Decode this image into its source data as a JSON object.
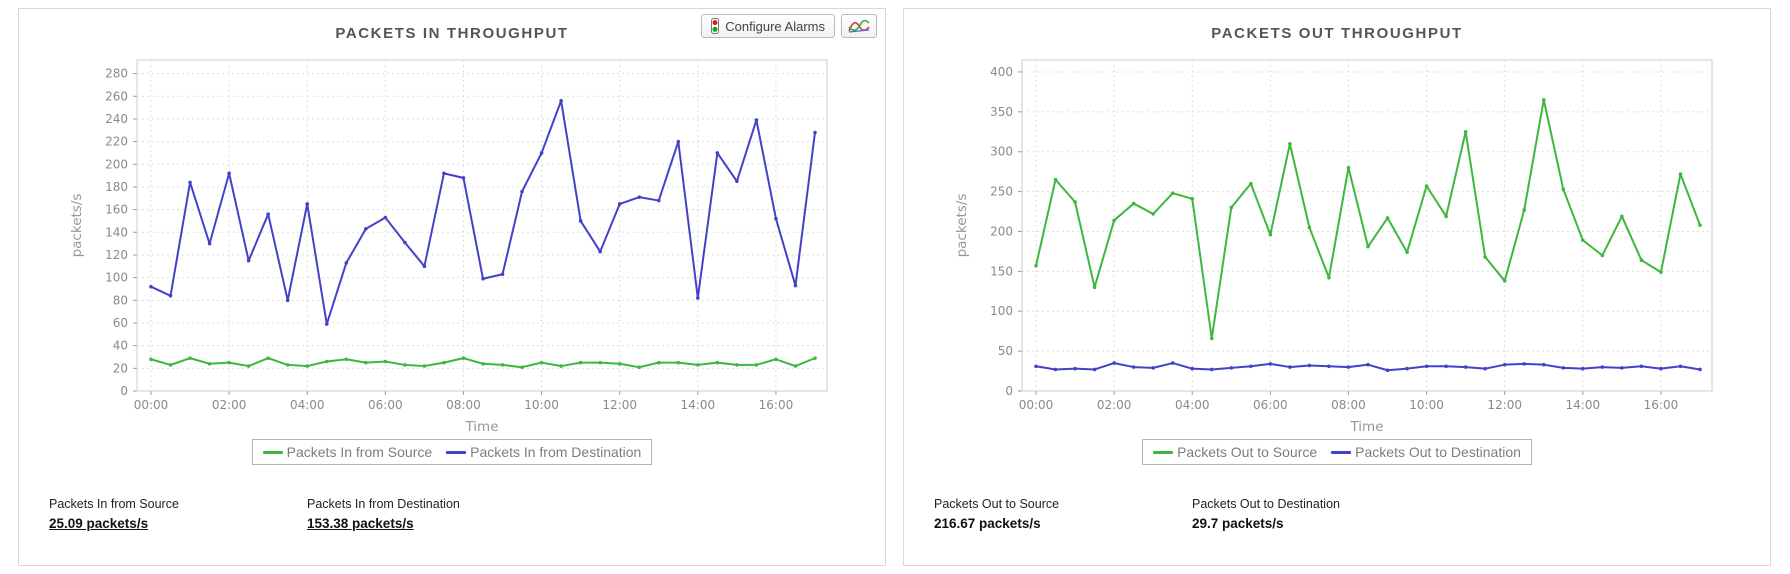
{
  "toolbar": {
    "configure_alarms_label": "Configure Alarms"
  },
  "colors": {
    "source_green": "#3cb83c",
    "destination_blue": "#4242c8",
    "grid": "#dedede",
    "plot_border": "#cccccc",
    "tick_text": "#8a8a8a",
    "axis_title_text": "#979797",
    "title_text": "#555555"
  },
  "panels": [
    {
      "title": "PACKETS IN THROUGHPUT",
      "stats": [
        {
          "label": "Packets In from Source",
          "value": "25.09 packets/s"
        },
        {
          "label": "Packets In from Destination",
          "value": "153.38 packets/s"
        }
      ]
    },
    {
      "title": "PACKETS OUT THROUGHPUT",
      "stats": [
        {
          "label": "Packets Out to Source",
          "value": "216.67 packets/s"
        },
        {
          "label": "Packets Out to Destination",
          "value": "29.7 packets/s"
        }
      ]
    }
  ],
  "chart_data": [
    {
      "type": "line",
      "title": "PACKETS IN THROUGHPUT",
      "xlabel": "Time",
      "ylabel": "packets/s",
      "x_range_hours": [
        0,
        17
      ],
      "x_step_hours": 0.5,
      "xtick_hours": [
        0,
        2,
        4,
        6,
        8,
        10,
        12,
        14,
        16
      ],
      "xtick_labels": [
        "00:00",
        "02:00",
        "04:00",
        "06:00",
        "08:00",
        "10:00",
        "12:00",
        "14:00",
        "16:00"
      ],
      "yticks": [
        0,
        20,
        40,
        60,
        80,
        100,
        120,
        140,
        160,
        180,
        200,
        220,
        240,
        260,
        280
      ],
      "ylim": [
        0,
        292
      ],
      "grid": true,
      "legend_position": "bottom",
      "series": [
        {
          "name": "Packets In from Source",
          "color": "#3cb83c",
          "values": [
            28,
            23,
            29,
            24,
            25,
            22,
            29,
            23,
            22,
            26,
            28,
            25,
            26,
            23,
            22,
            25,
            29,
            24,
            23,
            21,
            25,
            22,
            25,
            25,
            24,
            21,
            25,
            25,
            23,
            25,
            23,
            23,
            28,
            22,
            29
          ]
        },
        {
          "name": "Packets In from Destination",
          "color": "#4242c8",
          "values": [
            92,
            84,
            184,
            130,
            192,
            115,
            156,
            80,
            165,
            59,
            113,
            143,
            153,
            131,
            110,
            192,
            188,
            99,
            103,
            176,
            210,
            256,
            150,
            123,
            165,
            171,
            168,
            220,
            82,
            210,
            185,
            239,
            152,
            93,
            228
          ]
        }
      ]
    },
    {
      "type": "line",
      "title": "PACKETS OUT THROUGHPUT",
      "xlabel": "Time",
      "ylabel": "packets/s",
      "x_range_hours": [
        0,
        17
      ],
      "x_step_hours": 0.5,
      "xtick_hours": [
        0,
        2,
        4,
        6,
        8,
        10,
        12,
        14,
        16
      ],
      "xtick_labels": [
        "00:00",
        "02:00",
        "04:00",
        "06:00",
        "08:00",
        "10:00",
        "12:00",
        "14:00",
        "16:00"
      ],
      "yticks": [
        0,
        50,
        100,
        150,
        200,
        250,
        300,
        350,
        400
      ],
      "ylim": [
        0,
        415
      ],
      "grid": true,
      "legend_position": "bottom",
      "series": [
        {
          "name": "Packets Out to Source",
          "color": "#3cb83c",
          "values": [
            157,
            265,
            237,
            130,
            214,
            235,
            222,
            248,
            241,
            66,
            230,
            260,
            196,
            310,
            205,
            142,
            280,
            181,
            217,
            174,
            257,
            219,
            325,
            168,
            138,
            227,
            365,
            253,
            189,
            170,
            219,
            164,
            149,
            272,
            208
          ]
        },
        {
          "name": "Packets Out to Destination",
          "color": "#4242c8",
          "values": [
            31,
            27,
            28,
            27,
            35,
            30,
            29,
            35,
            28,
            27,
            29,
            31,
            34,
            30,
            32,
            31,
            30,
            33,
            26,
            28,
            31,
            31,
            30,
            28,
            33,
            34,
            33,
            29,
            28,
            30,
            29,
            31,
            28,
            31,
            27
          ]
        }
      ]
    }
  ]
}
